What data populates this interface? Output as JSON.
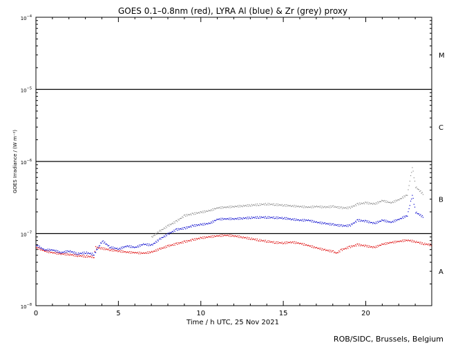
{
  "chart_data": {
    "type": "scatter",
    "title": "GOES 0.1–0.8nm (red), LYRA Al (blue) & Zr (grey) proxy",
    "xlabel": "Time / h UTC, 25 Nov 2021",
    "ylabel": "GOES Irradiance / (W m⁻²)",
    "xlim": [
      0,
      24
    ],
    "ylim_exponent": [
      -8,
      -4
    ],
    "yscale": "log",
    "x_ticks": [
      0,
      5,
      10,
      15,
      20
    ],
    "y_ticks": [
      {
        "base": "10",
        "exp": "−8"
      },
      {
        "base": "10",
        "exp": "−7"
      },
      {
        "base": "10",
        "exp": "−6"
      },
      {
        "base": "10",
        "exp": "−5"
      },
      {
        "base": "10",
        "exp": "−4"
      }
    ],
    "flare_class_lines": [
      1e-07,
      1e-06,
      1e-05
    ],
    "flare_classes": [
      {
        "label": "A",
        "center": 3e-08
      },
      {
        "label": "B",
        "center": 3e-07
      },
      {
        "label": "C",
        "center": 3e-06
      },
      {
        "label": "M",
        "center": 3e-05
      }
    ],
    "colors": {
      "goes": "#dd0000",
      "al": "#0000cc",
      "zr": "#888888",
      "axis": "#000000"
    },
    "series": [
      {
        "key": "goes",
        "color": "#dd0000",
        "x": [
          0,
          0.5,
          1,
          1.5,
          2,
          2.5,
          3,
          3.5,
          3.6,
          4,
          4.5,
          5,
          5.5,
          6,
          6.5,
          7,
          7.5,
          8,
          8.5,
          9,
          9.5,
          10,
          10.5,
          11,
          11.5,
          12,
          12.5,
          13,
          13.5,
          14,
          14.5,
          15,
          15.5,
          16,
          16.5,
          17,
          17.5,
          18,
          18.2,
          18.5,
          19,
          19.5,
          20,
          20.5,
          21,
          21.5,
          22,
          22.5,
          23,
          23.5,
          24
        ],
        "y": [
          6.5e-08,
          5.8e-08,
          5.5e-08,
          5.3e-08,
          5.2e-08,
          5e-08,
          4.9e-08,
          4.8e-08,
          6.5e-08,
          6.3e-08,
          6e-08,
          5.8e-08,
          5.6e-08,
          5.5e-08,
          5.4e-08,
          5.6e-08,
          6.2e-08,
          6.8e-08,
          7.3e-08,
          7.8e-08,
          8.3e-08,
          8.8e-08,
          9.1e-08,
          9.4e-08,
          9.6e-08,
          9.4e-08,
          9e-08,
          8.6e-08,
          8.2e-08,
          7.9e-08,
          7.6e-08,
          7.5e-08,
          7.7e-08,
          7.4e-08,
          6.9e-08,
          6.4e-08,
          6e-08,
          5.7e-08,
          5.4e-08,
          6e-08,
          6.6e-08,
          7.1e-08,
          6.8e-08,
          6.5e-08,
          7.2e-08,
          7.6e-08,
          7.9e-08,
          8.2e-08,
          7.8e-08,
          7.3e-08,
          7e-08
        ]
      },
      {
        "key": "al",
        "color": "#0000cc",
        "x": [
          0,
          0.5,
          1,
          1.5,
          2,
          2.5,
          3,
          3.5,
          4,
          4.5,
          5,
          5.5,
          6,
          6.5,
          7,
          7.5,
          8,
          8.5,
          9,
          9.5,
          10,
          10.5,
          11,
          11.5,
          12,
          12.5,
          13,
          13.5,
          14,
          14.5,
          15,
          15.5,
          16,
          16.5,
          17,
          17.5,
          18,
          18.5,
          19,
          19.5,
          20,
          20.5,
          21,
          21.5,
          22,
          22.5,
          22.8,
          23,
          23.5
        ],
        "y": [
          7e-08,
          6e-08,
          6e-08,
          5.5e-08,
          5.8e-08,
          5.3e-08,
          5.5e-08,
          5.2e-08,
          8e-08,
          6.5e-08,
          6.2e-08,
          6.8e-08,
          6.5e-08,
          7.2e-08,
          7e-08,
          8.5e-08,
          1e-07,
          1.15e-07,
          1.2e-07,
          1.3e-07,
          1.35e-07,
          1.4e-07,
          1.6e-07,
          1.62e-07,
          1.62e-07,
          1.65e-07,
          1.68e-07,
          1.7e-07,
          1.7e-07,
          1.68e-07,
          1.66e-07,
          1.6e-07,
          1.55e-07,
          1.55e-07,
          1.45e-07,
          1.4e-07,
          1.35e-07,
          1.3e-07,
          1.3e-07,
          1.55e-07,
          1.5e-07,
          1.4e-07,
          1.55e-07,
          1.45e-07,
          1.6e-07,
          1.8e-07,
          3.5e-07,
          2e-07,
          1.7e-07
        ]
      },
      {
        "key": "zr",
        "color": "#888888",
        "x": [
          7,
          7.5,
          8,
          8.5,
          9,
          9.5,
          10,
          10.5,
          11,
          11.5,
          12,
          12.5,
          13,
          13.5,
          14,
          14.5,
          15,
          15.5,
          16,
          16.5,
          17,
          17.5,
          18,
          18.5,
          19,
          19.5,
          20,
          20.5,
          21,
          21.5,
          22,
          22.5,
          22.8,
          23,
          23.5
        ],
        "y": [
          9e-08,
          1.1e-07,
          1.3e-07,
          1.5e-07,
          1.8e-07,
          1.9e-07,
          2e-07,
          2.1e-07,
          2.3e-07,
          2.35e-07,
          2.4e-07,
          2.45e-07,
          2.5e-07,
          2.55e-07,
          2.6e-07,
          2.55e-07,
          2.5e-07,
          2.45e-07,
          2.4e-07,
          2.35e-07,
          2.4e-07,
          2.35e-07,
          2.4e-07,
          2.3e-07,
          2.3e-07,
          2.6e-07,
          2.7e-07,
          2.6e-07,
          2.9e-07,
          2.7e-07,
          3e-07,
          3.5e-07,
          8.5e-07,
          4.5e-07,
          3.5e-07
        ]
      }
    ]
  },
  "credit": "ROB/SIDC, Brussels, Belgium"
}
